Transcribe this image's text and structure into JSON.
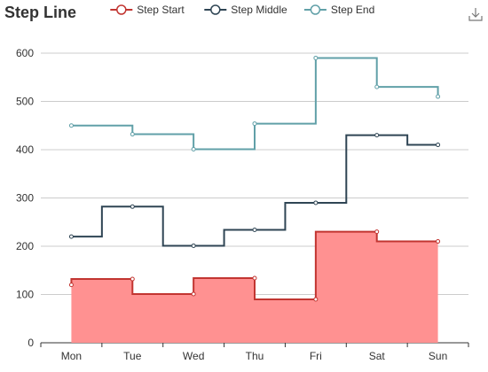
{
  "chart_data": {
    "type": "line",
    "title": "Step Line",
    "categories": [
      "Mon",
      "Tue",
      "Wed",
      "Thu",
      "Fri",
      "Sat",
      "Sun"
    ],
    "ylim": [
      0,
      600
    ],
    "yticks": [
      0,
      100,
      200,
      300,
      400,
      500,
      600
    ],
    "grid": true,
    "legend_position": "top",
    "series": [
      {
        "name": "Step Start",
        "step": "start",
        "area": true,
        "color": "#c23531",
        "area_color": "#ff9191",
        "values": [
          120,
          132,
          101,
          134,
          90,
          230,
          210
        ]
      },
      {
        "name": "Step Middle",
        "step": "middle",
        "area": false,
        "color": "#2f4554",
        "values": [
          220,
          282,
          201,
          234,
          290,
          430,
          410
        ]
      },
      {
        "name": "Step End",
        "step": "end",
        "area": false,
        "color": "#61a0a8",
        "values": [
          450,
          432,
          401,
          454,
          590,
          530,
          510
        ]
      }
    ]
  },
  "toolbox": {
    "download_icon": "download-icon"
  }
}
